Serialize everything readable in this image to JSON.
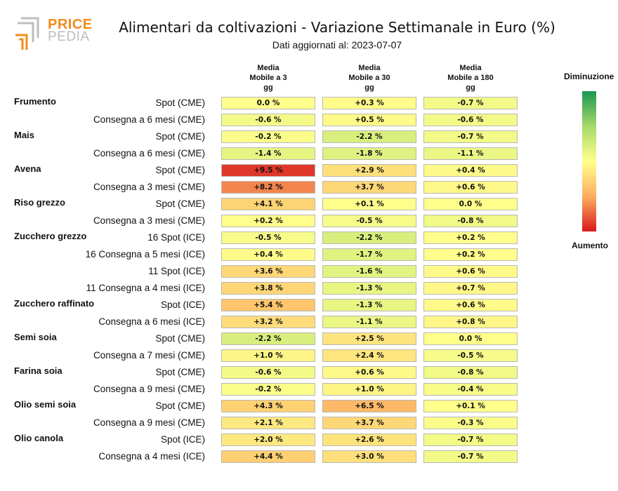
{
  "logo": {
    "line1": "PRICE",
    "line2": "PEDIA",
    "color_orange": "#f08c1e",
    "color_gray": "#bdbdbd"
  },
  "title": "Alimentari da coltivazioni - Variazione Settimanale in Euro (%)",
  "subtitle": "Dati aggiornati al: 2023-07-07",
  "legend": {
    "top_label": "Diminuzione",
    "bottom_label": "Aumento"
  },
  "chart_data": {
    "type": "table",
    "title": "Alimentari da coltivazioni - Variazione Settimanale in Euro (%)",
    "columns": [
      [
        "Media",
        "Mobile a 3",
        "gg"
      ],
      [
        "Media",
        "Mobile a 30",
        "gg"
      ],
      [
        "Media",
        "Mobile a 180",
        "gg"
      ]
    ],
    "groups": [
      {
        "name": "Frumento",
        "rows": [
          {
            "label": "Spot (CME)",
            "values": [
              0.0,
              0.3,
              -0.7
            ],
            "texts": [
              "0.0 %",
              "+0.3 %",
              "-0.7 %"
            ]
          },
          {
            "label": "Consegna a 6 mesi (CME)",
            "values": [
              -0.6,
              0.5,
              -0.6
            ],
            "texts": [
              "-0.6 %",
              "+0.5 %",
              "-0.6 %"
            ]
          }
        ]
      },
      {
        "name": "Mais",
        "rows": [
          {
            "label": "Spot (CME)",
            "values": [
              -0.2,
              -2.2,
              -0.7
            ],
            "texts": [
              "-0.2 %",
              "-2.2 %",
              "-0.7 %"
            ]
          },
          {
            "label": "Consegna a 6 mesi (CME)",
            "values": [
              -1.4,
              -1.8,
              -1.1
            ],
            "texts": [
              "-1.4 %",
              "-1.8 %",
              "-1.1 %"
            ]
          }
        ]
      },
      {
        "name": "Avena",
        "rows": [
          {
            "label": "Spot (CME)",
            "values": [
              9.5,
              2.9,
              0.4
            ],
            "texts": [
              "+9.5 %",
              "+2.9 %",
              "+0.4 %"
            ]
          },
          {
            "label": "Consegna a 3 mesi (CME)",
            "values": [
              8.2,
              3.7,
              0.6
            ],
            "texts": [
              "+8.2 %",
              "+3.7 %",
              "+0.6 %"
            ]
          }
        ]
      },
      {
        "name": "Riso grezzo",
        "rows": [
          {
            "label": "Spot (CME)",
            "values": [
              4.1,
              0.1,
              0.0
            ],
            "texts": [
              "+4.1 %",
              "+0.1 %",
              "0.0 %"
            ]
          },
          {
            "label": "Consegna a 3 mesi (CME)",
            "values": [
              0.2,
              -0.5,
              -0.8
            ],
            "texts": [
              "+0.2 %",
              "-0.5 %",
              "-0.8 %"
            ]
          }
        ]
      },
      {
        "name": "Zucchero grezzo",
        "rows": [
          {
            "label": "16 Spot (ICE)",
            "values": [
              -0.5,
              -2.2,
              0.2
            ],
            "texts": [
              "-0.5 %",
              "-2.2 %",
              "+0.2 %"
            ]
          },
          {
            "label": "16 Consegna a 5 mesi (ICE)",
            "values": [
              0.4,
              -1.7,
              0.2
            ],
            "texts": [
              "+0.4 %",
              "-1.7 %",
              "+0.2 %"
            ]
          },
          {
            "label": "11 Spot (ICE)",
            "values": [
              3.6,
              -1.6,
              0.6
            ],
            "texts": [
              "+3.6 %",
              "-1.6 %",
              "+0.6 %"
            ]
          },
          {
            "label": "11 Consegna a 4 mesi (ICE)",
            "values": [
              3.8,
              -1.3,
              0.7
            ],
            "texts": [
              "+3.8 %",
              "-1.3 %",
              "+0.7 %"
            ]
          }
        ]
      },
      {
        "name": "Zucchero raffinato",
        "rows": [
          {
            "label": "Spot (ICE)",
            "values": [
              5.4,
              -1.3,
              0.6
            ],
            "texts": [
              "+5.4 %",
              "-1.3 %",
              "+0.6 %"
            ]
          },
          {
            "label": "Consegna a 6 mesi (ICE)",
            "values": [
              3.2,
              -1.1,
              0.8
            ],
            "texts": [
              "+3.2 %",
              "-1.1 %",
              "+0.8 %"
            ]
          }
        ]
      },
      {
        "name": "Semi soia",
        "rows": [
          {
            "label": "Spot (CME)",
            "values": [
              -2.2,
              2.5,
              0.0
            ],
            "texts": [
              "-2.2 %",
              "+2.5 %",
              "0.0 %"
            ]
          },
          {
            "label": "Consegna a 7 mesi (CME)",
            "values": [
              1.0,
              2.4,
              -0.5
            ],
            "texts": [
              "+1.0 %",
              "+2.4 %",
              "-0.5 %"
            ]
          }
        ]
      },
      {
        "name": "Farina soia",
        "rows": [
          {
            "label": "Spot (CME)",
            "values": [
              -0.6,
              0.6,
              -0.8
            ],
            "texts": [
              "-0.6 %",
              "+0.6 %",
              "-0.8 %"
            ]
          },
          {
            "label": "Consegna a 9 mesi (CME)",
            "values": [
              -0.2,
              1.0,
              -0.4
            ],
            "texts": [
              "-0.2 %",
              "+1.0 %",
              "-0.4 %"
            ]
          }
        ]
      },
      {
        "name": "Olio semi soia",
        "rows": [
          {
            "label": "Spot (CME)",
            "values": [
              4.3,
              6.5,
              0.1
            ],
            "texts": [
              "+4.3 %",
              "+6.5 %",
              "+0.1 %"
            ]
          },
          {
            "label": "Consegna a 9 mesi (CME)",
            "values": [
              2.1,
              3.7,
              -0.3
            ],
            "texts": [
              "+2.1 %",
              "+3.7 %",
              "-0.3 %"
            ]
          }
        ]
      },
      {
        "name": "Olio canola",
        "rows": [
          {
            "label": "Spot (ICE)",
            "values": [
              2.0,
              2.6,
              -0.7
            ],
            "texts": [
              "+2.0 %",
              "+2.6 %",
              "-0.7 %"
            ]
          },
          {
            "label": "Consegna a 4 mesi (ICE)",
            "values": [
              4.4,
              3.0,
              -0.7
            ],
            "texts": [
              "+4.4 %",
              "+3.0 %",
              "-0.7 %"
            ]
          }
        ]
      }
    ],
    "color_scale": {
      "decrease": "#1a9850",
      "mild_decrease": "#a6d96a",
      "neutral": "#ffff8c",
      "mild_increase": "#fdae61",
      "increase": "#d7191c"
    }
  }
}
